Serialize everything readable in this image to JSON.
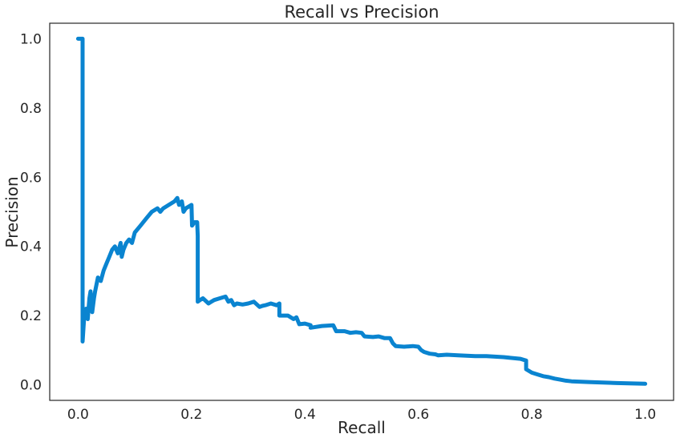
{
  "chart_data": {
    "type": "line",
    "title": "Recall vs Precision",
    "xlabel": "Recall",
    "ylabel": "Precision",
    "xlim": [
      -0.05,
      1.05
    ],
    "ylim": [
      -0.045,
      1.045
    ],
    "grid": false,
    "legend": "none",
    "xticks": [
      0.0,
      0.2,
      0.4,
      0.6,
      0.8,
      1.0
    ],
    "xtick_labels": [
      "0.0",
      "0.2",
      "0.4",
      "0.6",
      "0.8",
      "1.0"
    ],
    "yticks": [
      0.0,
      0.2,
      0.4,
      0.6,
      0.8,
      1.0
    ],
    "ytick_labels": [
      "0.0",
      "0.2",
      "0.4",
      "0.6",
      "0.8",
      "1.0"
    ],
    "series": [
      {
        "color": "#0a84d0",
        "x": [
          0.0,
          0.008,
          0.008,
          0.008,
          0.011,
          0.014,
          0.017,
          0.02,
          0.022,
          0.025,
          0.028,
          0.03,
          0.035,
          0.04,
          0.045,
          0.05,
          0.055,
          0.06,
          0.065,
          0.07,
          0.075,
          0.077,
          0.08,
          0.085,
          0.09,
          0.095,
          0.1,
          0.11,
          0.12,
          0.13,
          0.14,
          0.145,
          0.15,
          0.16,
          0.17,
          0.175,
          0.178,
          0.183,
          0.186,
          0.19,
          0.2,
          0.201,
          0.205,
          0.21,
          0.211,
          0.211,
          0.215,
          0.22,
          0.23,
          0.235,
          0.24,
          0.25,
          0.26,
          0.265,
          0.27,
          0.275,
          0.28,
          0.29,
          0.3,
          0.31,
          0.32,
          0.325,
          0.33,
          0.34,
          0.35,
          0.355,
          0.355,
          0.37,
          0.38,
          0.385,
          0.39,
          0.4,
          0.41,
          0.41,
          0.43,
          0.45,
          0.455,
          0.47,
          0.48,
          0.49,
          0.5,
          0.505,
          0.52,
          0.53,
          0.54,
          0.55,
          0.555,
          0.56,
          0.575,
          0.59,
          0.6,
          0.605,
          0.61,
          0.62,
          0.63,
          0.635,
          0.65,
          0.67,
          0.7,
          0.72,
          0.75,
          0.78,
          0.79,
          0.79,
          0.8,
          0.81,
          0.82,
          0.83,
          0.84,
          0.85,
          0.86,
          0.87,
          0.9,
          0.95,
          1.0
        ],
        "y": [
          1.0,
          1.0,
          0.5,
          0.125,
          0.2,
          0.22,
          0.19,
          0.25,
          0.27,
          0.21,
          0.25,
          0.27,
          0.31,
          0.3,
          0.33,
          0.35,
          0.37,
          0.39,
          0.4,
          0.38,
          0.41,
          0.37,
          0.39,
          0.41,
          0.42,
          0.41,
          0.44,
          0.46,
          0.48,
          0.5,
          0.51,
          0.5,
          0.51,
          0.52,
          0.53,
          0.54,
          0.52,
          0.53,
          0.5,
          0.51,
          0.52,
          0.46,
          0.47,
          0.47,
          0.43,
          0.24,
          0.245,
          0.25,
          0.235,
          0.24,
          0.245,
          0.25,
          0.255,
          0.24,
          0.245,
          0.23,
          0.235,
          0.232,
          0.235,
          0.24,
          0.225,
          0.228,
          0.23,
          0.235,
          0.23,
          0.235,
          0.2,
          0.2,
          0.19,
          0.195,
          0.175,
          0.177,
          0.172,
          0.165,
          0.17,
          0.172,
          0.155,
          0.155,
          0.15,
          0.152,
          0.15,
          0.14,
          0.138,
          0.14,
          0.135,
          0.135,
          0.12,
          0.112,
          0.11,
          0.112,
          0.11,
          0.1,
          0.095,
          0.09,
          0.088,
          0.085,
          0.087,
          0.085,
          0.083,
          0.083,
          0.08,
          0.075,
          0.07,
          0.045,
          0.035,
          0.03,
          0.025,
          0.022,
          0.018,
          0.015,
          0.012,
          0.01,
          0.008,
          0.005,
          0.003
        ]
      }
    ]
  }
}
